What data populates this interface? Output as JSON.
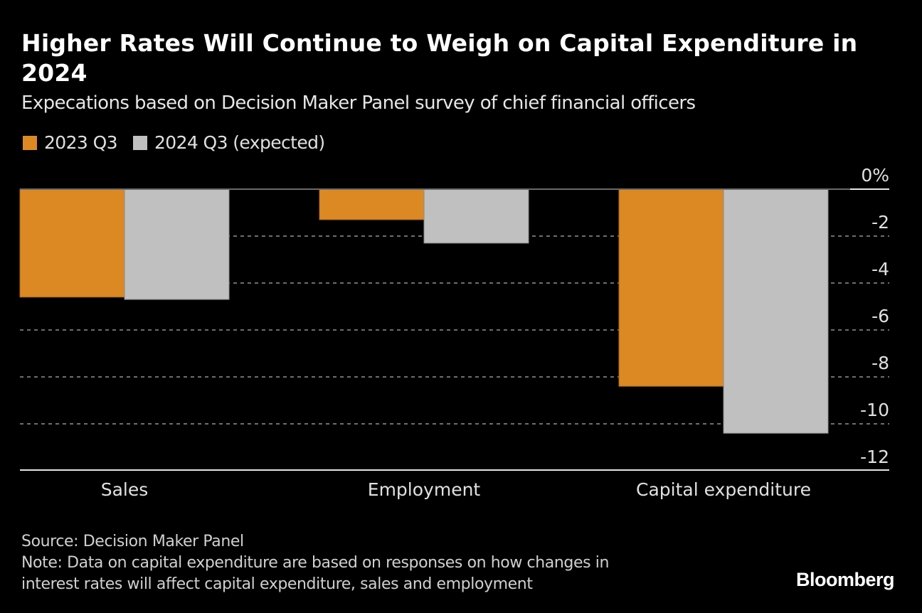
{
  "header": {
    "title": "Higher Rates Will Continue to Weigh on Capital Expenditure in 2024",
    "subtitle": "Expecations based on Decision Maker Panel survey of chief financial officers"
  },
  "legend": [
    {
      "label": "2023 Q3",
      "color": "#dc8924"
    },
    {
      "label": "2024 Q3 (expected)",
      "color": "#c0c0c0"
    }
  ],
  "chart_data": {
    "type": "bar",
    "title": "Higher Rates Will Continue to Weigh on Capital Expenditure in 2024",
    "subtitle": "Expecations based on Decision Maker Panel survey of chief financial officers",
    "categories": [
      "Sales",
      "Employment",
      "Capital expenditure"
    ],
    "series": [
      {
        "name": "2023 Q3",
        "color": "#dc8924",
        "values": [
          -4.6,
          -1.3,
          -8.4
        ]
      },
      {
        "name": "2024 Q3 (expected)",
        "color": "#c0c0c0",
        "values": [
          -4.7,
          -2.3,
          -10.4
        ]
      }
    ],
    "xlabel": "",
    "ylabel": "",
    "ylim": [
      -12,
      0
    ],
    "yticks": [
      0,
      -2,
      -4,
      -6,
      -8,
      -10,
      -12
    ],
    "ytick_labels": [
      "0%",
      "-2",
      "-4",
      "-6",
      "-8",
      "-10",
      "-12"
    ],
    "y_axis_position": "right",
    "grid": true,
    "legend_position": "top-left"
  },
  "footer": {
    "source": "Source: Decision Maker Panel",
    "note_line1": "Note: Data on capital expenditure are based on responses on how changes in",
    "note_line2": "interest rates will affect capital expenditure, sales and employment"
  },
  "brand": "Bloomberg"
}
